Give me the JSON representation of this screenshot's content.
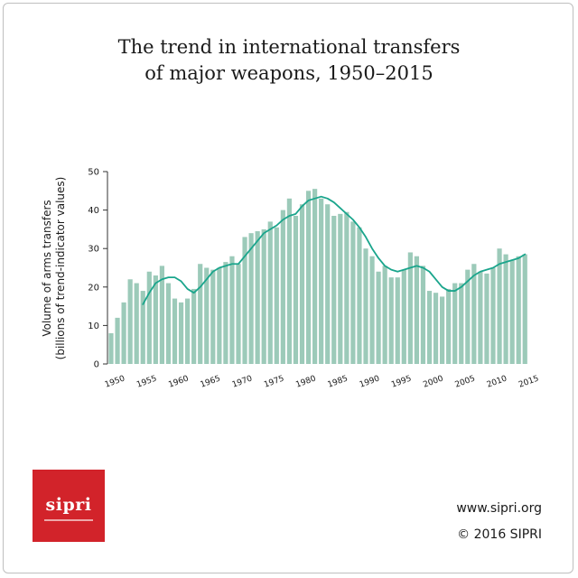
{
  "chart_data": {
    "type": "bar",
    "title_lines": [
      "The trend in international transfers",
      "of major weapons, 1950–2015"
    ],
    "ylabel_lines": [
      "Volume of arms transfers",
      "(billions of trend-indicator values)"
    ],
    "xlabel": "",
    "ylim": [
      0,
      50
    ],
    "yticks": [
      0,
      10,
      20,
      30,
      40,
      50
    ],
    "xticks": [
      1950,
      1955,
      1960,
      1965,
      1970,
      1975,
      1980,
      1985,
      1990,
      1995,
      2000,
      2005,
      2010,
      2015
    ],
    "grid": false,
    "bar_color": "#9ccab9",
    "line_color": "#1aa58c",
    "years": [
      1950,
      1951,
      1952,
      1953,
      1954,
      1955,
      1956,
      1957,
      1958,
      1959,
      1960,
      1961,
      1962,
      1963,
      1964,
      1965,
      1966,
      1967,
      1968,
      1969,
      1970,
      1971,
      1972,
      1973,
      1974,
      1975,
      1976,
      1977,
      1978,
      1979,
      1980,
      1981,
      1982,
      1983,
      1984,
      1985,
      1986,
      1987,
      1988,
      1989,
      1990,
      1991,
      1992,
      1993,
      1994,
      1995,
      1996,
      1997,
      1998,
      1999,
      2000,
      2001,
      2002,
      2003,
      2004,
      2005,
      2006,
      2007,
      2008,
      2009,
      2010,
      2011,
      2012,
      2013,
      2014,
      2015
    ],
    "series": [
      {
        "type": "bar",
        "values": [
          8,
          12,
          16,
          22,
          21,
          19,
          24,
          23,
          25.5,
          21,
          17,
          16,
          17,
          19.5,
          26,
          25,
          24.5,
          25,
          26.5,
          28,
          26,
          33,
          34,
          34.5,
          35,
          37,
          35.5,
          40,
          43,
          38.5,
          41.5,
          45,
          45.5,
          43,
          41.5,
          38.5,
          39,
          39.5,
          37,
          35.5,
          30,
          28,
          24,
          25.5,
          22.5,
          22.5,
          24.5,
          29,
          28,
          25.5,
          19,
          18.5,
          17.5,
          19.5,
          21,
          21,
          24.5,
          26,
          24,
          23.5,
          25,
          30,
          28.5,
          27,
          28,
          28.5
        ]
      },
      {
        "type": "line",
        "x": [
          1955,
          1956,
          1957,
          1958,
          1959,
          1960,
          1961,
          1962,
          1963,
          1964,
          1965,
          1966,
          1967,
          1968,
          1969,
          1970,
          1971,
          1972,
          1973,
          1974,
          1975,
          1976,
          1977,
          1978,
          1979,
          1980,
          1981,
          1982,
          1983,
          1984,
          1985,
          1986,
          1987,
          1988,
          1989,
          1990,
          1991,
          1992,
          1993,
          1994,
          1995,
          1996,
          1997,
          1998,
          1999,
          2000,
          2001,
          2002,
          2003,
          2004,
          2005,
          2006,
          2007,
          2008,
          2009,
          2010,
          2011,
          2012,
          2013,
          2014,
          2015
        ],
        "values": [
          15.5,
          18.5,
          21,
          22,
          22.5,
          22.5,
          21.5,
          19.5,
          18.5,
          20,
          22,
          24,
          25,
          25.5,
          26,
          26,
          28,
          30,
          32,
          34,
          35,
          36,
          37.5,
          38.5,
          39,
          41,
          42.5,
          43,
          43.5,
          43,
          42,
          40.5,
          39,
          37.5,
          35.5,
          33,
          30,
          27.5,
          25.5,
          24.5,
          24,
          24.5,
          25,
          25.5,
          25,
          24,
          22,
          20,
          19,
          19,
          20,
          21.5,
          23,
          24,
          24.5,
          25,
          26,
          26.5,
          27,
          27.5,
          28.5
        ]
      }
    ]
  },
  "footer": {
    "logo_text": "sipri",
    "website": "www.sipri.org",
    "copyright": "© 2016 SIPRI"
  }
}
